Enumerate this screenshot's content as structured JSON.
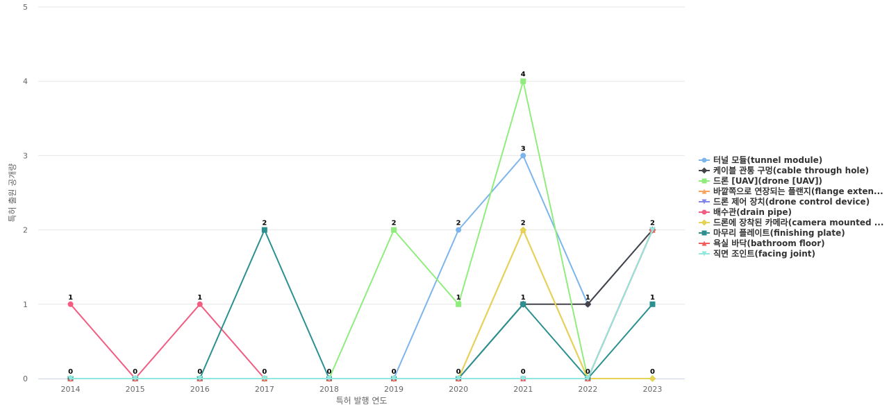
{
  "chart_data": {
    "type": "line",
    "xlabel": "특허 발행 연도",
    "ylabel": "특허 출원 공개량",
    "ylim": [
      0,
      5
    ],
    "yticks": [
      0,
      1,
      2,
      3,
      4,
      5
    ],
    "categories": [
      "2014",
      "2015",
      "2016",
      "2017",
      "2018",
      "2019",
      "2020",
      "2021",
      "2022",
      "2023"
    ],
    "grid": true,
    "legend_position": "right",
    "series": [
      {
        "name": "터널 모듈(tunnel module)",
        "color": "#7cb5ec",
        "marker": "circle",
        "values": [
          0,
          0,
          0,
          0,
          0,
          0,
          2,
          3,
          1,
          2
        ]
      },
      {
        "name": "케이블 관통 구멍(cable through hole)",
        "color": "#434348",
        "marker": "diamond",
        "values": [
          0,
          0,
          0,
          0,
          0,
          0,
          0,
          1,
          1,
          2
        ]
      },
      {
        "name": "드론 [UAV](drone [UAV])",
        "color": "#90ed7d",
        "marker": "square",
        "values": [
          0,
          0,
          0,
          0,
          0,
          2,
          1,
          4,
          0,
          2
        ]
      },
      {
        "name": "바깥쪽으로 연장되는 플랜지(flange exten...",
        "color": "#f7a35c",
        "marker": "triangle",
        "values": [
          0,
          0,
          0,
          0,
          0,
          0,
          0,
          2,
          0,
          2
        ]
      },
      {
        "name": "드론 제어 장치(drone control device)",
        "color": "#8085e9",
        "marker": "triangle-down",
        "values": [
          0,
          0,
          0,
          0,
          0,
          0,
          0,
          0,
          0,
          2
        ]
      },
      {
        "name": "배수관(drain pipe)",
        "color": "#f15c80",
        "marker": "circle",
        "values": [
          1,
          0,
          1,
          0,
          0,
          0,
          0,
          0,
          0,
          2
        ]
      },
      {
        "name": "드론에 장착된 카메라(camera mounted ...",
        "color": "#e4d354",
        "marker": "diamond",
        "values": [
          0,
          0,
          0,
          0,
          0,
          0,
          0,
          2,
          0,
          0
        ]
      },
      {
        "name": "마무리 플레이트(finishing plate)",
        "color": "#2b908f",
        "marker": "square",
        "values": [
          0,
          0,
          0,
          2,
          0,
          0,
          0,
          1,
          0,
          1
        ]
      },
      {
        "name": "욕실 바닥(bathroom floor)",
        "color": "#f45b5b",
        "marker": "triangle",
        "values": [
          0,
          0,
          0,
          0,
          0,
          0,
          0,
          0,
          0,
          2
        ]
      },
      {
        "name": "직면 조인트(facing joint)",
        "color": "#91e8e1",
        "marker": "triangle-down",
        "values": [
          0,
          0,
          0,
          0,
          0,
          0,
          0,
          0,
          0,
          2
        ]
      }
    ],
    "data_labels": [
      {
        "x": "2014",
        "y": 1,
        "text": "1"
      },
      {
        "x": "2014",
        "y": 0,
        "text": "0"
      },
      {
        "x": "2015",
        "y": 0,
        "text": "0"
      },
      {
        "x": "2016",
        "y": 1,
        "text": "1"
      },
      {
        "x": "2016",
        "y": 0,
        "text": "0"
      },
      {
        "x": "2017",
        "y": 2,
        "text": "2"
      },
      {
        "x": "2017",
        "y": 0,
        "text": "0"
      },
      {
        "x": "2018",
        "y": 0,
        "text": "0"
      },
      {
        "x": "2019",
        "y": 2,
        "text": "2"
      },
      {
        "x": "2019",
        "y": 0,
        "text": "0"
      },
      {
        "x": "2020",
        "y": 2,
        "text": "2"
      },
      {
        "x": "2020",
        "y": 1,
        "text": "1"
      },
      {
        "x": "2020",
        "y": 0,
        "text": "0"
      },
      {
        "x": "2021",
        "y": 4,
        "text": "4"
      },
      {
        "x": "2021",
        "y": 3,
        "text": "3"
      },
      {
        "x": "2021",
        "y": 2,
        "text": "2"
      },
      {
        "x": "2021",
        "y": 1,
        "text": "1"
      },
      {
        "x": "2021",
        "y": 0,
        "text": "0"
      },
      {
        "x": "2022",
        "y": 1,
        "text": "1"
      },
      {
        "x": "2022",
        "y": 0,
        "text": "0"
      },
      {
        "x": "2023",
        "y": 2,
        "text": "2"
      },
      {
        "x": "2023",
        "y": 1,
        "text": "1"
      },
      {
        "x": "2023",
        "y": 0,
        "text": "0"
      }
    ]
  }
}
